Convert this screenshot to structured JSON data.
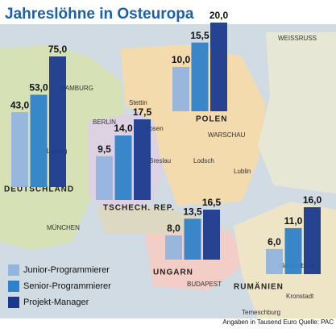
{
  "chart_data": {
    "type": "bar",
    "title": "Jahreslöhne in Osteuropa",
    "categories": [
      "DEUTSCHLAND",
      "TSCHECH. REP.",
      "POLEN",
      "UNGARN",
      "RUMÄNIEN"
    ],
    "series": [
      {
        "name": "Junior-Programmierer",
        "color": "#93b4de",
        "values": [
          43.0,
          9.5,
          10.0,
          8.0,
          6.0
        ],
        "value_labels": [
          "43,0",
          "9,5",
          "10,0",
          "8,0",
          "6,0"
        ]
      },
      {
        "name": "Senior-Programmierer",
        "color": "#2f82c9",
        "values": [
          53.0,
          14.0,
          15.5,
          13.5,
          11.0
        ],
        "value_labels": [
          "53,0",
          "14,0",
          "15,5",
          "13,5",
          "11,0"
        ]
      },
      {
        "name": "Projekt-Manager",
        "color": "#1b3a8e",
        "values": [
          75.0,
          17.5,
          20.0,
          16.5,
          16.0
        ],
        "value_labels": [
          "75,0",
          "17,5",
          "20,0",
          "16,5",
          "16,0"
        ]
      }
    ],
    "map_labels": [
      "HAMBURG",
      "BERLIN",
      "Leipzig",
      "MÜNCHEN",
      "Stettin",
      "Posen",
      "Breslau",
      "Lodsch",
      "WARSCHAU",
      "Lublin",
      "BUDAPEST",
      "Klausenburg",
      "Kronstadt",
      "Temeschburg",
      "WEISSRUSS"
    ],
    "note": "Angaben in Tausend Euro  Quelle: PAC"
  }
}
